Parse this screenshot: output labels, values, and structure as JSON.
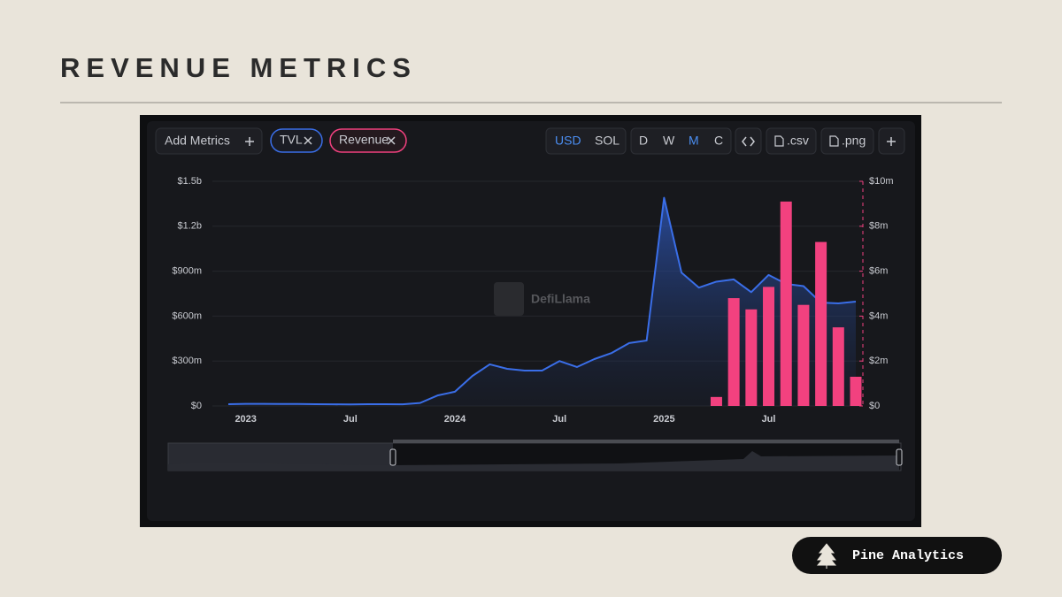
{
  "slide": {
    "title": "REVENUE METRICS",
    "brand": "Pine Analytics"
  },
  "toolbar": {
    "add_metrics": "Add Metrics",
    "currencies": [
      "USD",
      "SOL"
    ],
    "periods": [
      "D",
      "W",
      "M",
      "C"
    ],
    "exports": [
      ".csv",
      ".png"
    ]
  },
  "watermark": "DefiLlama",
  "chart_data": {
    "type": "combo",
    "categories": [
      null,
      "2023",
      null,
      null,
      null,
      null,
      null,
      "Jul",
      null,
      null,
      null,
      null,
      null,
      "2024",
      null,
      null,
      null,
      null,
      null,
      "Jul",
      null,
      null,
      null,
      null,
      null,
      "2025",
      null,
      null,
      null,
      null,
      null,
      "Jul",
      null,
      null,
      null,
      null,
      null
    ],
    "series": [
      {
        "name": "TVL",
        "type": "line",
        "axis": "y",
        "color": "#3a6ee8",
        "values": [
          12000000,
          14000000,
          14000000,
          13000000,
          13000000,
          12000000,
          11000000,
          10000000,
          12000000,
          12000000,
          11000000,
          20000000,
          70000000,
          95000000,
          200000000,
          278000000,
          248000000,
          236000000,
          236000000,
          300000000,
          260000000,
          313000000,
          354000000,
          420000000,
          437000000,
          1390000000,
          890000000,
          790000000,
          830000000,
          845000000,
          760000000,
          875000000,
          815000000,
          800000000,
          690000000,
          685000000,
          697000000
        ]
      },
      {
        "name": "Revenue",
        "type": "bar",
        "axis": "y2",
        "color": "#f2417f",
        "values": [
          null,
          null,
          null,
          null,
          null,
          null,
          null,
          null,
          null,
          null,
          null,
          null,
          null,
          null,
          null,
          null,
          null,
          null,
          null,
          null,
          null,
          null,
          null,
          null,
          null,
          null,
          null,
          null,
          400000,
          4800000,
          4300000,
          5300000,
          9100000,
          4500000,
          7300000,
          3500000,
          1300000
        ]
      }
    ],
    "ylim": [
      0,
      1500000000
    ],
    "yticks": [
      {
        "value": 0,
        "label": "$0"
      },
      {
        "value": 300000000,
        "label": "$300m"
      },
      {
        "value": 600000000,
        "label": "$600m"
      },
      {
        "value": 900000000,
        "label": "$900m"
      },
      {
        "value": 1200000000,
        "label": "$1.2b"
      },
      {
        "value": 1500000000,
        "label": "$1.5b"
      }
    ],
    "y2lim": [
      0,
      10000000
    ],
    "y2ticks": [
      {
        "value": 0,
        "label": "$0"
      },
      {
        "value": 2000000,
        "label": "$2m"
      },
      {
        "value": 4000000,
        "label": "$4m"
      },
      {
        "value": 6000000,
        "label": "$6m"
      },
      {
        "value": 8000000,
        "label": "$8m"
      },
      {
        "value": 10000000,
        "label": "$10m"
      }
    ],
    "grid": true
  }
}
